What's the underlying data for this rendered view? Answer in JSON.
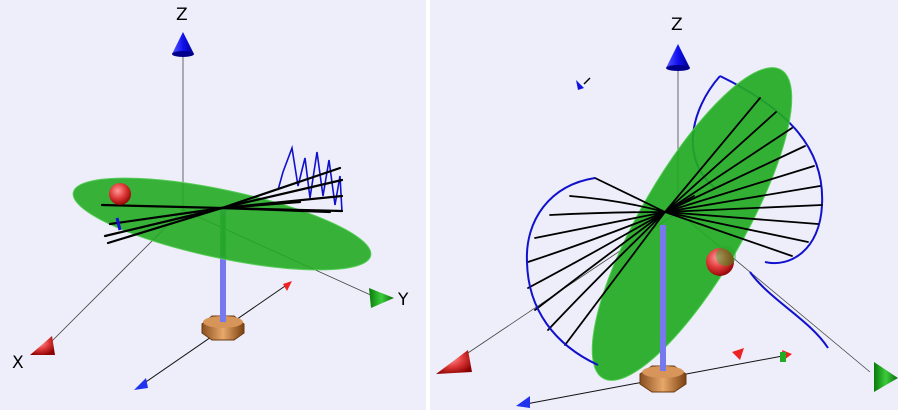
{
  "left_view": {
    "labels": {
      "z": "Z",
      "y": "Y",
      "x": "X"
    }
  },
  "right_view": {
    "labels": {
      "z": "Z"
    }
  },
  "colors": {
    "background": "#eeeefb",
    "disc": "#22aa22",
    "z_arrow": "#1111ee",
    "y_arrow": "#33bb33",
    "x_arrow": "#cc1111",
    "trace": "#1111cc",
    "spokes": "#000000",
    "pole": "#7777ee",
    "base": "#c8824a",
    "ball": "#ee4444"
  },
  "icons": [
    "z-axis-cone",
    "y-axis-cone",
    "x-axis-cone",
    "sphere-marker",
    "octagonal-base",
    "support-pole"
  ]
}
